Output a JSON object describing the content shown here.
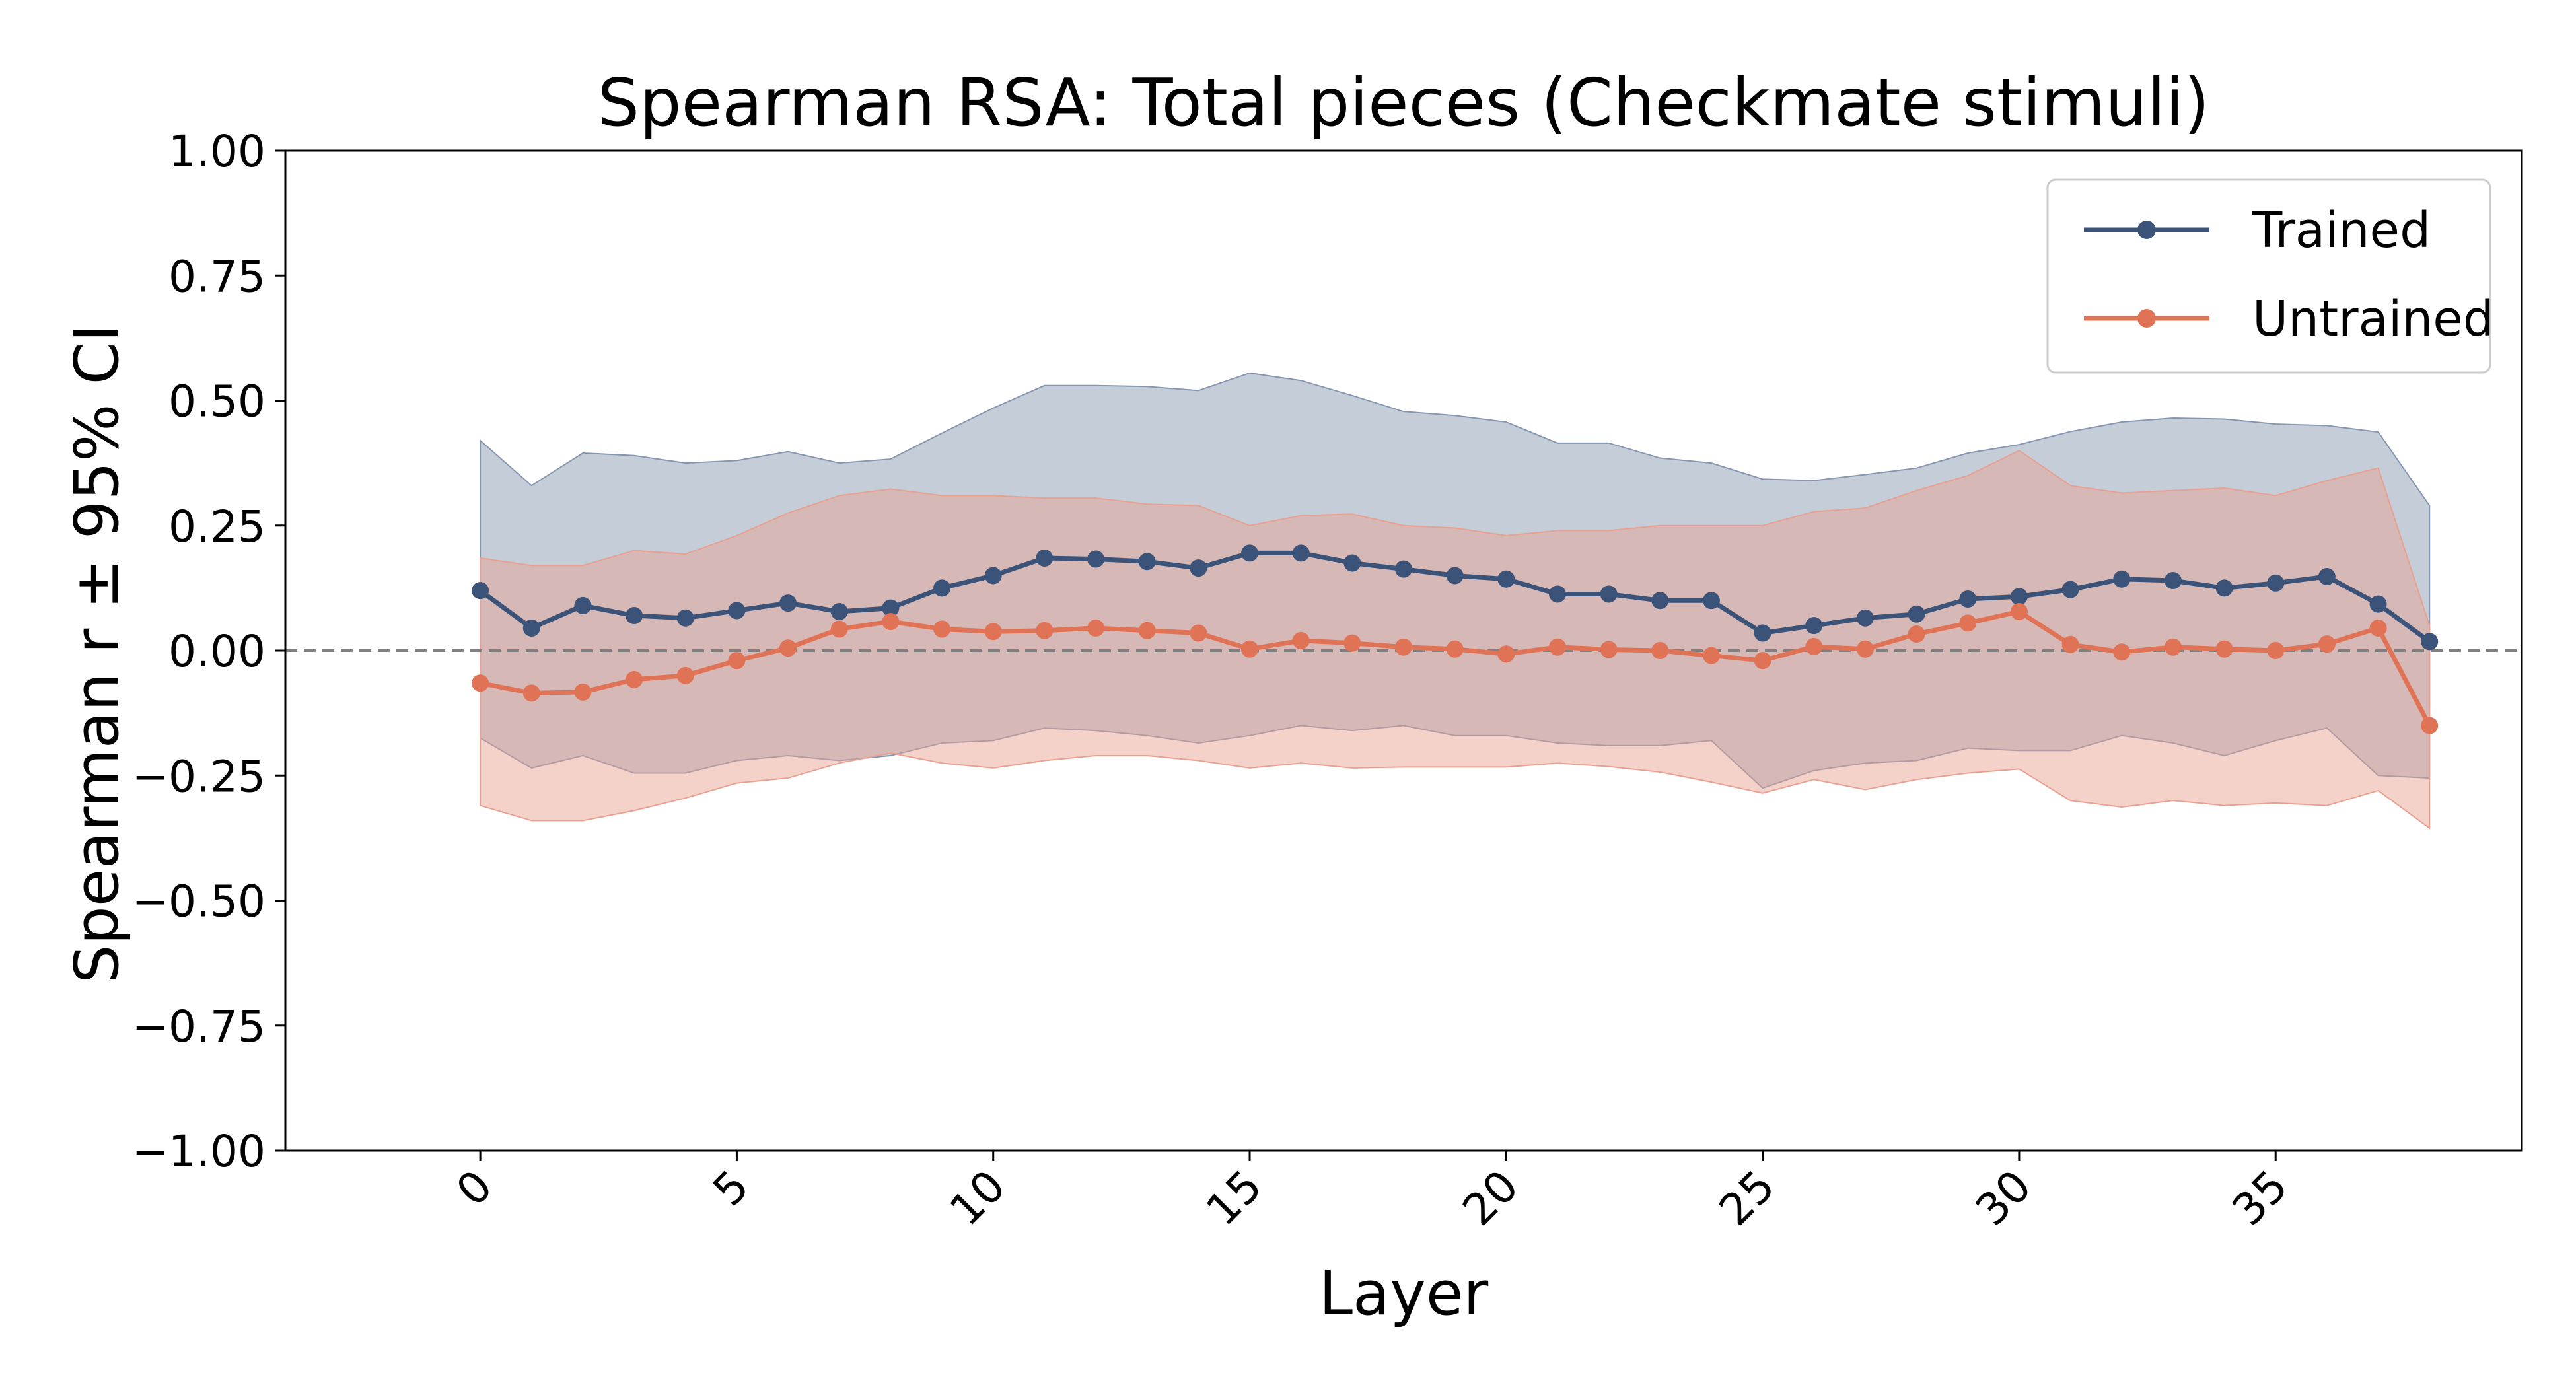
{
  "chart_data": {
    "type": "line",
    "title": "Spearman RSA: Total pieces (Checkmate stimuli)",
    "xlabel": "Layer",
    "ylabel": "Spearman r ± 95% CI",
    "xlim": [
      -3.8,
      39.8
    ],
    "ylim": [
      -1.0,
      1.0
    ],
    "x_ticks": [
      0,
      5,
      10,
      15,
      20,
      25,
      30,
      35
    ],
    "y_ticks": [
      -1.0,
      -0.75,
      -0.5,
      -0.25,
      0.0,
      0.25,
      0.5,
      0.75,
      1.0
    ],
    "y_tick_labels": [
      "−1.00",
      "−0.75",
      "−0.50",
      "−0.25",
      "0.00",
      "0.25",
      "0.50",
      "0.75",
      "1.00"
    ],
    "reference_line": {
      "y": 0.0,
      "style": "dashed",
      "color": "#808080"
    },
    "legend_position": "upper-right",
    "grid": false,
    "x": [
      0,
      1,
      2,
      3,
      4,
      5,
      6,
      7,
      8,
      9,
      10,
      11,
      12,
      13,
      14,
      15,
      16,
      17,
      18,
      19,
      20,
      21,
      22,
      23,
      24,
      25,
      26,
      27,
      28,
      29,
      30,
      31,
      32,
      33,
      34,
      35,
      36,
      37,
      38
    ],
    "series": [
      {
        "name": "Trained",
        "color": "#3b5378",
        "band_color": "#8596b0",
        "values": [
          0.12,
          0.045,
          0.09,
          0.07,
          0.065,
          0.08,
          0.095,
          0.078,
          0.085,
          0.125,
          0.15,
          0.185,
          0.183,
          0.178,
          0.165,
          0.195,
          0.195,
          0.175,
          0.163,
          0.15,
          0.143,
          0.113,
          0.113,
          0.1,
          0.1,
          0.035,
          0.05,
          0.065,
          0.073,
          0.103,
          0.108,
          0.122,
          0.143,
          0.14,
          0.125,
          0.135,
          0.148,
          0.093,
          0.018
        ],
        "ci_upper": [
          0.42,
          0.33,
          0.395,
          0.39,
          0.375,
          0.38,
          0.398,
          0.375,
          0.383,
          0.435,
          0.485,
          0.53,
          0.53,
          0.528,
          0.52,
          0.555,
          0.54,
          0.51,
          0.478,
          0.47,
          0.457,
          0.415,
          0.415,
          0.385,
          0.375,
          0.343,
          0.34,
          0.352,
          0.365,
          0.395,
          0.412,
          0.438,
          0.457,
          0.465,
          0.463,
          0.453,
          0.45,
          0.437,
          0.29
        ],
        "ci_lower": [
          -0.175,
          -0.235,
          -0.21,
          -0.245,
          -0.245,
          -0.22,
          -0.21,
          -0.22,
          -0.21,
          -0.185,
          -0.18,
          -0.155,
          -0.16,
          -0.17,
          -0.185,
          -0.17,
          -0.15,
          -0.16,
          -0.15,
          -0.17,
          -0.17,
          -0.185,
          -0.19,
          -0.19,
          -0.18,
          -0.275,
          -0.24,
          -0.225,
          -0.22,
          -0.195,
          -0.2,
          -0.2,
          -0.17,
          -0.185,
          -0.21,
          -0.18,
          -0.155,
          -0.25,
          -0.255
        ]
      },
      {
        "name": "Untrained",
        "color": "#e07356",
        "band_color": "#e8a090",
        "values": [
          -0.065,
          -0.085,
          -0.083,
          -0.058,
          -0.05,
          -0.02,
          0.005,
          0.043,
          0.058,
          0.043,
          0.038,
          0.04,
          0.045,
          0.04,
          0.035,
          0.003,
          0.02,
          0.015,
          0.007,
          0.003,
          -0.007,
          0.007,
          0.002,
          0.0,
          -0.01,
          -0.02,
          0.008,
          0.003,
          0.033,
          0.055,
          0.078,
          0.012,
          -0.003,
          0.007,
          0.003,
          0.0,
          0.013,
          0.045,
          -0.15
        ],
        "ci_upper": [
          0.185,
          0.17,
          0.17,
          0.2,
          0.193,
          0.23,
          0.275,
          0.31,
          0.323,
          0.31,
          0.31,
          0.305,
          0.305,
          0.293,
          0.29,
          0.25,
          0.27,
          0.273,
          0.25,
          0.245,
          0.23,
          0.24,
          0.24,
          0.25,
          0.25,
          0.25,
          0.278,
          0.285,
          0.32,
          0.35,
          0.4,
          0.33,
          0.315,
          0.32,
          0.325,
          0.31,
          0.34,
          0.365,
          0.05
        ],
        "ci_lower": [
          -0.31,
          -0.34,
          -0.34,
          -0.32,
          -0.295,
          -0.265,
          -0.255,
          -0.225,
          -0.205,
          -0.225,
          -0.235,
          -0.22,
          -0.21,
          -0.21,
          -0.22,
          -0.235,
          -0.225,
          -0.235,
          -0.233,
          -0.233,
          -0.233,
          -0.225,
          -0.232,
          -0.243,
          -0.263,
          -0.285,
          -0.258,
          -0.278,
          -0.258,
          -0.245,
          -0.237,
          -0.3,
          -0.313,
          -0.3,
          -0.31,
          -0.305,
          -0.31,
          -0.28,
          -0.355
        ]
      }
    ]
  }
}
